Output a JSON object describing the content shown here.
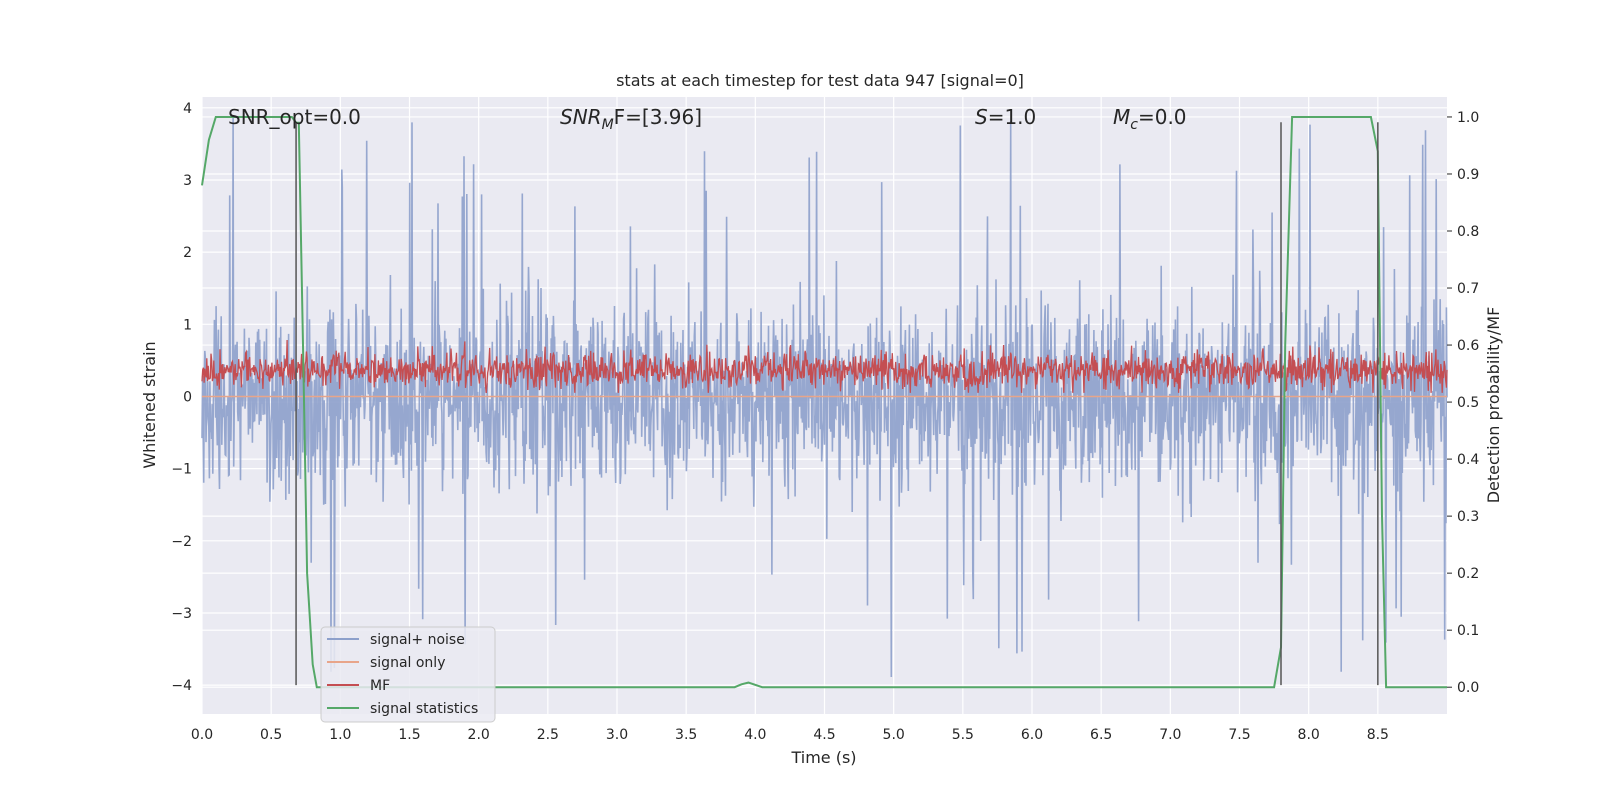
{
  "chart_data": {
    "type": "line",
    "title": "stats at each timestep for test data 947 [signal=0]",
    "xlabel": "Time (s)",
    "ylabel": "Whitened strain",
    "ylabel_right": "Detection probability/MF",
    "xlim": [
      0.0,
      9.0
    ],
    "ylim": [
      -4.4,
      4.15
    ],
    "ylim_right": [
      -0.047,
      1.035
    ],
    "x_ticks": [
      "0.0",
      "0.5",
      "1.0",
      "1.5",
      "2.0",
      "2.5",
      "3.0",
      "3.5",
      "4.0",
      "4.5",
      "5.0",
      "5.5",
      "6.0",
      "6.5",
      "7.0",
      "7.5",
      "8.0",
      "8.5"
    ],
    "y_ticks": [
      "−4",
      "−3",
      "−2",
      "−1",
      "0",
      "1",
      "2",
      "3",
      "4"
    ],
    "y_ticks_right": [
      "0.0",
      "0.1",
      "0.2",
      "0.3",
      "0.4",
      "0.5",
      "0.6",
      "0.7",
      "0.8",
      "0.9",
      "1.0"
    ],
    "annotations": [
      {
        "pre": "SNR_opt=0.0",
        "italic": "",
        "sub": "",
        "post": ""
      },
      {
        "pre": "",
        "italic": "SNR",
        "sub": "M",
        "post": "F=[3.96]"
      },
      {
        "pre": "",
        "italic": "S",
        "sub": "",
        "post": "=1.0"
      },
      {
        "pre": "",
        "italic": "M",
        "sub": "c",
        "post": "=0.0"
      }
    ],
    "legend": {
      "position": "lower-left",
      "entries": [
        {
          "label": "signal+ noise",
          "color": "#8da0cb"
        },
        {
          "label": "signal only",
          "color": "#e8a58a"
        },
        {
          "label": "MF",
          "color": "#c44e52"
        },
        {
          "label": "signal statistics",
          "color": "#55a868"
        }
      ]
    },
    "series": [
      {
        "name": "signal+ noise",
        "axis": "left",
        "kind": "noise",
        "color": "#8da0cb",
        "amplitude_typical": 1.4,
        "amplitude_peak": 4.0
      },
      {
        "name": "signal only",
        "axis": "left",
        "kind": "flat",
        "color": "#e8a58a",
        "value": 0.0
      },
      {
        "name": "MF",
        "axis": "left",
        "kind": "band",
        "color": "#c44e52",
        "range": [
          0.05,
          0.9
        ]
      },
      {
        "name": "signal statistics",
        "axis": "right",
        "kind": "line",
        "color": "#55a868",
        "x": [
          0.0,
          0.05,
          0.1,
          0.3,
          0.5,
          0.65,
          0.68,
          0.7,
          0.73,
          0.76,
          0.8,
          0.83,
          1.0,
          2.0,
          3.0,
          3.85,
          3.9,
          3.95,
          4.05,
          5.0,
          6.0,
          7.0,
          7.75,
          7.8,
          7.83,
          7.88,
          7.9,
          8.0,
          8.2,
          8.45,
          8.5,
          8.53,
          8.56,
          8.6,
          8.7,
          9.0
        ],
        "y": [
          0.88,
          0.96,
          1.0,
          1.0,
          1.0,
          1.0,
          0.99,
          0.99,
          0.6,
          0.2,
          0.04,
          0.0,
          0.0,
          0.0,
          0.0,
          0.0,
          0.005,
          0.008,
          0.0,
          0.0,
          0.0,
          0.0,
          0.0,
          0.07,
          0.6,
          1.0,
          1.0,
          1.0,
          1.0,
          1.0,
          0.94,
          0.3,
          0.0,
          0.0,
          0.0,
          0.0
        ]
      },
      {
        "name": "detection markers",
        "axis": "left",
        "kind": "vlines",
        "color": "#555555",
        "x": [
          0.68,
          7.8,
          8.5
        ],
        "ymin": -4.0,
        "ymax": 3.8
      }
    ]
  }
}
